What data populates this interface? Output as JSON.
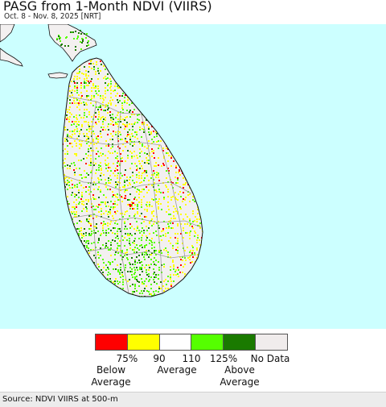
{
  "title": "PASG from 1-Month NDVI (VIIRS)",
  "subtitle": "Oct. 8 - Nov. 8, 2025 [NRT]",
  "map": {
    "region": "Sri Lanka",
    "colors": {
      "ocean": "#ccffff",
      "land_base": "#f3f0f0",
      "below_75": "#ff0000",
      "between_75_90": "#ffff00",
      "normal_90_110": "#ffffff",
      "between_110_125": "#55ff00",
      "above_125": "#1a7a00",
      "no_data": "#f0ecec",
      "boundary": "#999999",
      "coast": "#111111"
    }
  },
  "legend": {
    "swatches": [
      {
        "name": "below-75",
        "color": "#ff0000"
      },
      {
        "name": "75-90",
        "color": "#ffff00"
      },
      {
        "name": "90-110",
        "color": "#ffffff"
      },
      {
        "name": "110-125",
        "color": "#55ff00"
      },
      {
        "name": "above-125",
        "color": "#1a7a00"
      },
      {
        "name": "no-data",
        "color": "#f0ecec"
      }
    ],
    "ticks": [
      "75%",
      "90",
      "110",
      "125%"
    ],
    "no_data_label": "No Data",
    "below_line1": "Below",
    "below_line2": "Average",
    "average_label": "Average",
    "above_line1": "Above",
    "above_line2": "Average"
  },
  "footer": {
    "source": "Source: NDVI VIIRS at 500-m"
  }
}
